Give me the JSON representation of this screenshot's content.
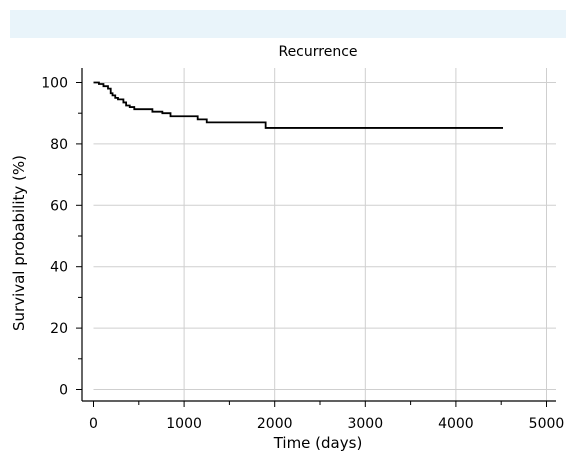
{
  "chart_data": {
    "type": "line",
    "title": "Recurrence",
    "xlabel": "Time (days)",
    "ylabel": "Survival probability (%)",
    "xlim": [
      0,
      5000
    ],
    "ylim": [
      0,
      100
    ],
    "xticks": [
      0,
      1000,
      2000,
      3000,
      4000,
      5000
    ],
    "yticks": [
      0,
      20,
      40,
      60,
      80,
      100
    ],
    "grid": true,
    "series": [
      {
        "name": "",
        "step": true,
        "color": "#000000",
        "x": [
          0,
          60,
          110,
          160,
          190,
          210,
          240,
          270,
          330,
          360,
          400,
          450,
          650,
          760,
          850,
          1150,
          1250,
          1900,
          4520
        ],
        "y": [
          100,
          99.5,
          98.8,
          98,
          96.5,
          95.8,
          95,
          94.5,
          93.5,
          92.5,
          92,
          91.3,
          90.5,
          90,
          89,
          88,
          87,
          85.2,
          85.2
        ]
      }
    ]
  }
}
